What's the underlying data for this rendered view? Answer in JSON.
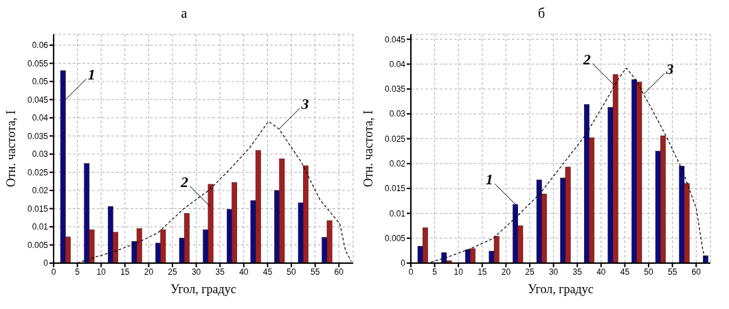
{
  "chart_data": [
    {
      "type": "bar",
      "title": "а",
      "xlabel": "Угол, градус",
      "ylabel": "Отн. частота, I",
      "x": [
        2.5,
        7.5,
        12.5,
        17.5,
        22.5,
        27.5,
        32.5,
        37.5,
        42.5,
        47.5,
        52.5,
        57.5
      ],
      "xlim": [
        0,
        63
      ],
      "xticks": [
        0,
        5,
        10,
        15,
        20,
        25,
        30,
        35,
        40,
        45,
        50,
        55,
        60
      ],
      "ylim": [
        0,
        0.063
      ],
      "yticks": [
        0,
        0.005,
        0.01,
        0.015,
        0.02,
        0.025,
        0.03,
        0.035,
        0.04,
        0.045,
        0.05,
        0.055,
        0.06
      ],
      "grid": true,
      "legend": false,
      "series": [
        {
          "color": "#0a0a80",
          "values": [
            0.053,
            0.0274,
            0.0156,
            0.006,
            0.0055,
            0.0069,
            0.0092,
            0.0148,
            0.0172,
            0.02,
            0.0166,
            0.0071
          ]
        },
        {
          "color": "#a02020",
          "values": [
            0.0072,
            0.0092,
            0.0085,
            0.0095,
            0.0092,
            0.0137,
            0.0217,
            0.0222,
            0.031,
            0.0287,
            0.0268,
            0.0117
          ]
        },
        {
          "type": "line",
          "color": "#000000",
          "line_style": "dashed",
          "marker": "none",
          "x": [
            5,
            7.8,
            12.8,
            17.4,
            21.9,
            27.4,
            32.6,
            36.9,
            41.2,
            45.2,
            47.4,
            52.1,
            56,
            60.2,
            61.4,
            62.6
          ],
          "values": [
            0,
            0.0013,
            0.0032,
            0.0055,
            0.0083,
            0.015,
            0.02,
            0.0256,
            0.0317,
            0.039,
            0.0369,
            0.0278,
            0.0175,
            0.0108,
            0.0034,
            0.0005
          ]
        }
      ],
      "annotations": [
        {
          "text": "1",
          "x": 2.5,
          "y": 0.045
        },
        {
          "text": "2",
          "x": 33,
          "y": 0.0155
        },
        {
          "text": "3",
          "x": 47.4,
          "y": 0.0369
        }
      ]
    },
    {
      "type": "bar",
      "title": "б",
      "xlabel": "Угол, градус",
      "ylabel": "Отн. частота, I",
      "x": [
        2.5,
        7.5,
        12.5,
        17.5,
        22.5,
        27.5,
        32.5,
        37.5,
        42.5,
        47.5,
        52.5,
        57.5,
        62.5
      ],
      "xlim": [
        0,
        63
      ],
      "xticks": [
        0,
        5,
        10,
        15,
        20,
        25,
        30,
        35,
        40,
        45,
        50,
        55,
        60
      ],
      "ylim": [
        0,
        0.046
      ],
      "yticks": [
        0,
        0.005,
        0.01,
        0.015,
        0.02,
        0.025,
        0.03,
        0.035,
        0.04,
        0.045
      ],
      "grid": true,
      "legend": false,
      "series": [
        {
          "color": "#0a0a80",
          "values": [
            0.0034,
            0.0021,
            0.0027,
            0.0024,
            0.0118,
            0.0167,
            0.0171,
            0.0319,
            0.0313,
            0.0369,
            0.0225,
            0.0195,
            0.0015
          ]
        },
        {
          "color": "#a02020",
          "values": [
            0.0071,
            0.0005,
            0.0029,
            0.0054,
            0.0075,
            0.0139,
            0.0193,
            0.0252,
            0.0379,
            0.0364,
            0.0256,
            0.016,
            null
          ]
        },
        {
          "type": "line",
          "color": "#000000",
          "line_style": "dashed",
          "marker": "none",
          "x": [
            4.2,
            7.4,
            12.3,
            17.2,
            22,
            27.1,
            31.9,
            36.7,
            40.5,
            43.8,
            45.3,
            47.1,
            50.7,
            53.8,
            57.1,
            60,
            61.4,
            61.9
          ],
          "values": [
            0.0002,
            0.0011,
            0.0028,
            0.0049,
            0.0091,
            0.0139,
            0.0198,
            0.0257,
            0.0318,
            0.0373,
            0.0392,
            0.0371,
            0.0309,
            0.0253,
            0.0187,
            0.0111,
            0.0026,
            0.0008
          ]
        }
      ],
      "annotations": [
        {
          "text": "1",
          "x": 22,
          "y": 0.0118
        },
        {
          "text": "2",
          "x": 42.5,
          "y": 0.036
        },
        {
          "text": "3",
          "x": 49,
          "y": 0.034
        }
      ]
    }
  ]
}
